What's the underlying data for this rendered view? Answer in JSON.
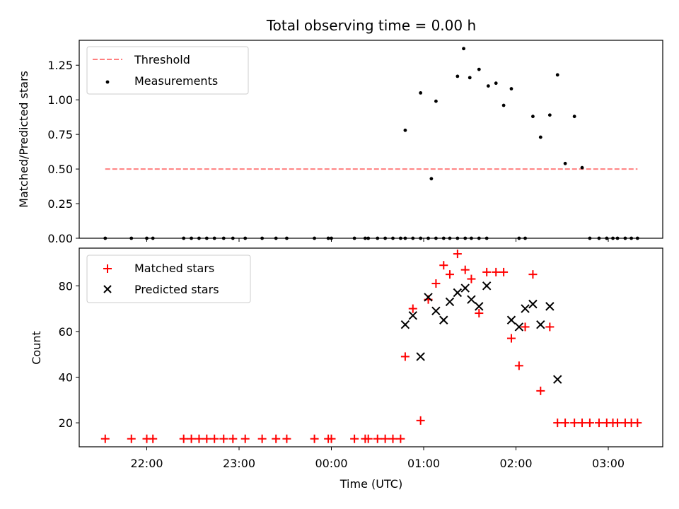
{
  "chart_data": {
    "title": "Total observing time = 0.00 h",
    "xlabel": "Time (UTC)",
    "x_tick_labels": [
      "22:00",
      "23:00",
      "00:00",
      "01:00",
      "02:00",
      "03:00"
    ],
    "colors": {
      "threshold": "#ff7f7f",
      "measurements": "#000000",
      "matched": "#ff0000",
      "predicted": "#000000"
    },
    "panels": [
      {
        "type": "scatter",
        "ylabel": "Matched/Predicted stars",
        "ylim": [
          0,
          1.43
        ],
        "y_ticks": [
          "0.00",
          "0.25",
          "0.50",
          "0.75",
          "1.00",
          "1.25"
        ],
        "legend": {
          "position": "top-left",
          "entries": [
            "Threshold",
            "Measurements"
          ]
        },
        "threshold": {
          "name": "Threshold",
          "value": 0.5,
          "x_range": [
            "21:33",
            "03:19"
          ]
        },
        "series": [
          {
            "name": "Measurements",
            "x": [
              "21:33",
              "21:50",
              "22:00",
              "22:04",
              "22:24",
              "22:29",
              "22:34",
              "22:39",
              "22:44",
              "22:50",
              "22:56",
              "23:04",
              "23:15",
              "23:24",
              "23:31",
              "23:49",
              "23:58",
              "00:00",
              "00:15",
              "00:22",
              "00:24",
              "00:30",
              "00:35",
              "00:40",
              "00:45",
              "00:48",
              "00:53",
              "00:58",
              "01:03",
              "01:08",
              "01:13",
              "01:17",
              "01:22",
              "01:27",
              "01:31",
              "01:36",
              "01:41",
              "00:48",
              "00:58",
              "01:05",
              "01:08",
              "01:22",
              "01:26",
              "01:30",
              "01:36",
              "01:42",
              "01:47",
              "01:52",
              "01:57",
              "02:02",
              "02:06",
              "02:11",
              "02:16",
              "02:22",
              "02:27",
              "02:32",
              "02:38",
              "02:43",
              "02:48",
              "02:54",
              "02:59",
              "03:03",
              "03:06",
              "03:11",
              "03:15",
              "03:19"
            ],
            "y": [
              0,
              0,
              0,
              0,
              0,
              0,
              0,
              0,
              0,
              0,
              0,
              0,
              0,
              0,
              0,
              0,
              0,
              0,
              0,
              0,
              0,
              0,
              0,
              0,
              0,
              0,
              0,
              0,
              0,
              0,
              0,
              0,
              0,
              0,
              0,
              0,
              0,
              0.78,
              1.05,
              0.43,
              0.99,
              1.17,
              1.37,
              1.16,
              1.22,
              1.1,
              1.12,
              0.96,
              1.08,
              0,
              0,
              0.88,
              0.73,
              0.89,
              1.18,
              0.54,
              0.88,
              0.51,
              0,
              0,
              0,
              0,
              0,
              0,
              0,
              0
            ]
          }
        ]
      },
      {
        "type": "scatter",
        "ylabel": "Count",
        "ylim": [
          9.5,
          96.5
        ],
        "y_ticks": [
          "20",
          "40",
          "60",
          "80"
        ],
        "legend": {
          "position": "top-left",
          "entries": [
            "Matched stars",
            "Predicted stars"
          ]
        },
        "series": [
          {
            "name": "Matched stars",
            "marker": "+",
            "x": [
              "21:33",
              "21:50",
              "22:00",
              "22:04",
              "22:24",
              "22:29",
              "22:34",
              "22:39",
              "22:44",
              "22:50",
              "22:56",
              "23:04",
              "23:15",
              "23:24",
              "23:31",
              "23:49",
              "23:58",
              "00:00",
              "00:15",
              "00:22",
              "00:24",
              "00:30",
              "00:35",
              "00:40",
              "00:45",
              "00:48",
              "00:53",
              "00:58",
              "01:03",
              "01:08",
              "01:13",
              "01:17",
              "01:22",
              "01:27",
              "01:31",
              "01:36",
              "01:41",
              "01:47",
              "01:52",
              "01:57",
              "02:02",
              "02:06",
              "02:11",
              "02:16",
              "02:22",
              "02:27",
              "02:32",
              "02:38",
              "02:43",
              "02:48",
              "02:54",
              "02:59",
              "03:03",
              "03:06",
              "03:11",
              "03:15",
              "03:19"
            ],
            "y": [
              13,
              13,
              13,
              13,
              13,
              13,
              13,
              13,
              13,
              13,
              13,
              13,
              13,
              13,
              13,
              13,
              13,
              13,
              13,
              13,
              13,
              13,
              13,
              13,
              13,
              49,
              70,
              21,
              74,
              81,
              89,
              85,
              94,
              87,
              83,
              68,
              86,
              86,
              86,
              57,
              45,
              62,
              85,
              34,
              62,
              20,
              20,
              20,
              20,
              20,
              20,
              20,
              20,
              20,
              20,
              20,
              20
            ]
          },
          {
            "name": "Predicted stars",
            "marker": "x",
            "x": [
              "00:48",
              "00:53",
              "00:58",
              "01:03",
              "01:08",
              "01:13",
              "01:17",
              "01:22",
              "01:27",
              "01:31",
              "01:36",
              "01:41",
              "01:57",
              "02:02",
              "02:06",
              "02:11",
              "02:16",
              "02:22",
              "02:27"
            ],
            "y": [
              63,
              67,
              49,
              75,
              69,
              65,
              73,
              77,
              79,
              74,
              71,
              80,
              65,
              62,
              70,
              72,
              63,
              71,
              39
            ]
          }
        ]
      }
    ]
  }
}
